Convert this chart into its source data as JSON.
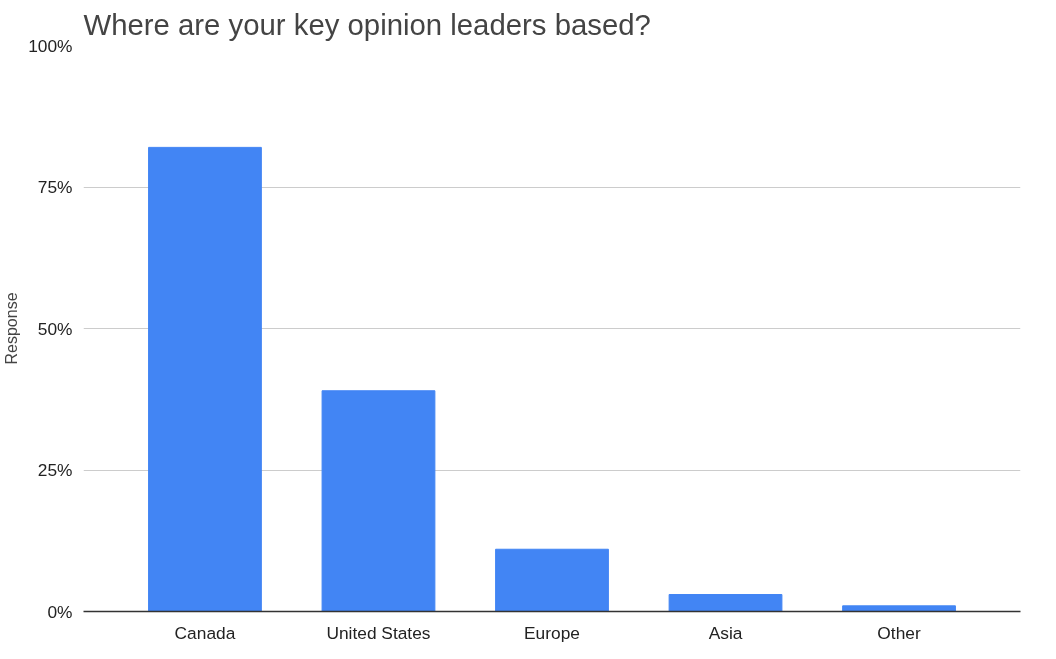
{
  "chart_data": {
    "type": "bar",
    "title": "Where are your key opinion leaders based?",
    "ylabel": "Response",
    "categories": [
      "Canada",
      "United States",
      "Europe",
      "Asia",
      "Other"
    ],
    "values": [
      82,
      39,
      11,
      3,
      1
    ],
    "color": "#4285f4",
    "ylim": [
      0,
      100
    ],
    "yticks": [
      {
        "value": 0,
        "label": "0%"
      },
      {
        "value": 25,
        "label": "25%"
      },
      {
        "value": 50,
        "label": "50%"
      },
      {
        "value": 75,
        "label": "75%"
      },
      {
        "value": 100,
        "label": "100%"
      }
    ],
    "grid": "y"
  }
}
